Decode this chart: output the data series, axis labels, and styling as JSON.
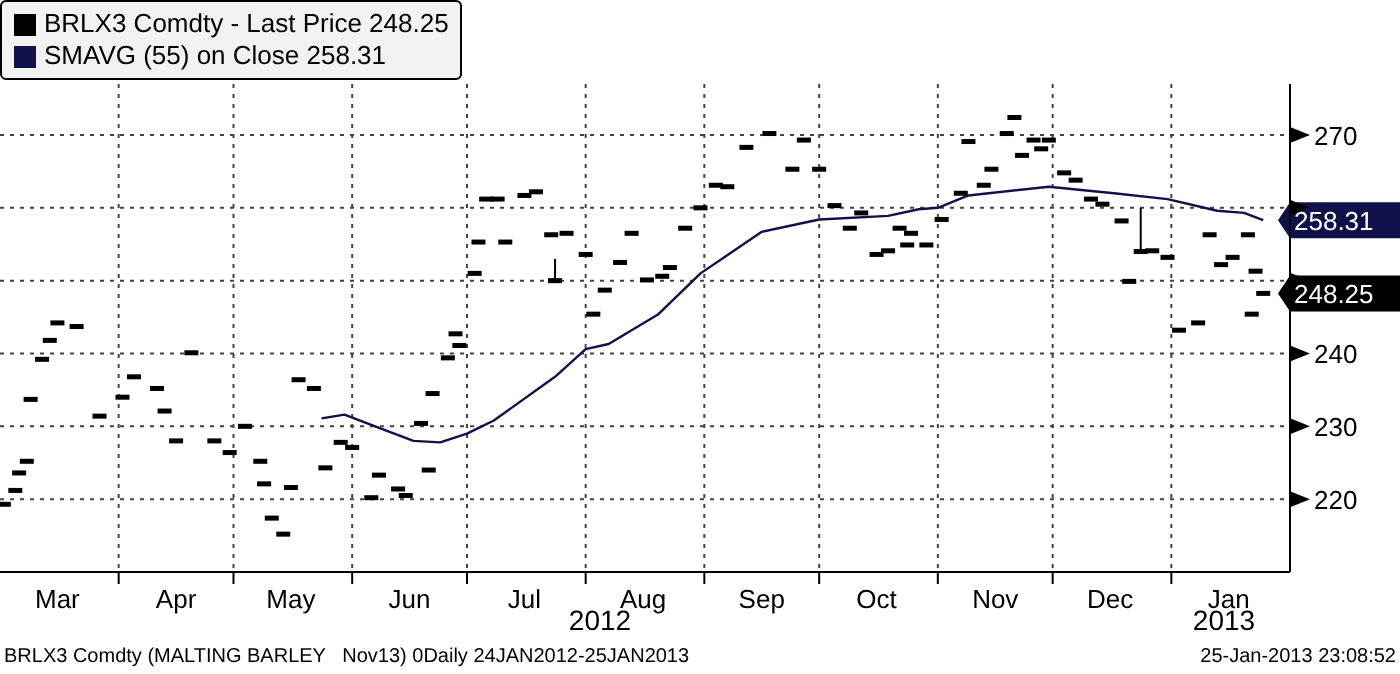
{
  "chart_data": {
    "type": "scatter",
    "legend": "top left",
    "grid": true,
    "xlim": [
      "2012-03-01",
      "2013-02-01"
    ],
    "xticks": [
      {
        "value": "2012-03-16",
        "label": "Mar"
      },
      {
        "value": "2012-04-01",
        "label": null
      },
      {
        "value": "2012-04-16",
        "label": "Apr"
      },
      {
        "value": "2012-05-01",
        "label": null
      },
      {
        "value": "2012-05-16",
        "label": "May"
      },
      {
        "value": "2012-06-01",
        "label": null
      },
      {
        "value": "2012-06-16",
        "label": "Jun"
      },
      {
        "value": "2012-07-01",
        "label": null
      },
      {
        "value": "2012-07-16",
        "label": "Jul"
      },
      {
        "value": "2012-08-01",
        "label": null
      },
      {
        "value": "2012-08-16",
        "label": "Aug"
      },
      {
        "value": "2012-09-01",
        "label": null
      },
      {
        "value": "2012-09-16",
        "label": "Sep"
      },
      {
        "value": "2012-10-01",
        "label": null
      },
      {
        "value": "2012-10-16",
        "label": "Oct"
      },
      {
        "value": "2012-11-01",
        "label": null
      },
      {
        "value": "2012-11-16",
        "label": "Nov"
      },
      {
        "value": "2012-12-01",
        "label": null
      },
      {
        "value": "2012-12-16",
        "label": "Dec"
      },
      {
        "value": "2013-01-01",
        "label": null
      },
      {
        "value": "2013-01-16",
        "label": "Jan"
      }
    ],
    "ylim": [
      210,
      277
    ],
    "yticks": [
      220,
      230,
      240,
      {
        "value": 250,
        "label": null
      },
      {
        "value": 260,
        "label": null
      },
      270
    ],
    "series": [
      {
        "name": "BRLX3 Comdty - Last Price 248.25",
        "color": "#000000",
        "x": [
          "2012-03-02",
          "2012-03-05",
          "2012-03-06",
          "2012-03-08",
          "2012-03-09",
          "2012-03-12",
          "2012-03-14",
          "2012-03-16",
          "2012-03-21",
          "2012-03-27",
          "2012-04-02",
          "2012-04-05",
          "2012-04-11",
          "2012-04-13",
          "2012-04-16",
          "2012-04-20",
          "2012-04-26",
          "2012-04-30",
          "2012-05-04",
          "2012-05-08",
          "2012-05-09",
          "2012-05-11",
          "2012-05-14",
          "2012-05-16",
          "2012-05-18",
          "2012-05-22",
          "2012-05-25",
          "2012-05-29",
          "2012-06-01",
          "2012-06-06",
          "2012-06-08",
          "2012-06-13",
          "2012-06-15",
          "2012-06-19",
          "2012-06-21",
          "2012-06-22",
          "2012-06-26",
          "2012-06-28",
          "2012-06-29",
          "2012-07-03",
          "2012-07-04",
          "2012-07-06",
          "2012-07-09",
          "2012-07-11",
          "2012-07-16",
          "2012-07-19",
          "2012-07-23",
          "2012-07-24",
          "2012-07-27",
          "2012-08-01",
          "2012-08-03",
          "2012-08-06",
          "2012-08-10",
          "2012-08-13",
          "2012-08-17",
          "2012-08-21",
          "2012-08-23",
          "2012-08-27",
          "2012-08-31",
          "2012-09-04",
          "2012-09-07",
          "2012-09-12",
          "2012-09-18",
          "2012-09-24",
          "2012-09-27",
          "2012-10-01",
          "2012-10-05",
          "2012-10-09",
          "2012-10-12",
          "2012-10-16",
          "2012-10-19",
          "2012-10-22",
          "2012-10-24",
          "2012-10-25",
          "2012-10-29",
          "2012-11-02",
          "2012-11-07",
          "2012-11-09",
          "2012-11-13",
          "2012-11-15",
          "2012-11-19",
          "2012-11-21",
          "2012-11-23",
          "2012-11-26",
          "2012-11-28",
          "2012-11-30",
          "2012-12-04",
          "2012-12-07",
          "2012-12-11",
          "2012-12-14",
          "2012-12-19",
          "2012-12-21",
          "2012-12-24",
          "2012-12-27",
          "2012-12-31",
          "2013-01-03",
          "2013-01-08",
          "2013-01-11",
          "2013-01-14",
          "2013-01-17",
          "2013-01-21",
          "2013-01-22",
          "2013-01-23",
          "2013-01-25"
        ],
        "values": [
          219.3,
          221.2,
          223.6,
          225.2,
          233.7,
          239.2,
          241.8,
          244.2,
          243.7,
          231.4,
          234,
          236.8,
          235.2,
          232.1,
          228,
          240.1,
          228,
          226.4,
          230,
          225.2,
          222.1,
          217.4,
          215.2,
          221.6,
          236.4,
          235.2,
          224.3,
          227.8,
          227.1,
          220.2,
          223.3,
          221.4,
          220.5,
          230.4,
          224,
          234.5,
          239.4,
          242.7,
          241.1,
          251,
          255.3,
          261.2,
          261.2,
          255.3,
          261.7,
          262.2,
          256.3,
          250,
          256.5,
          253.6,
          245.4,
          248.7,
          252.5,
          256.5,
          250.1,
          250.6,
          251.8,
          257.2,
          260,
          263.1,
          262.9,
          268.3,
          270.2,
          265.3,
          269.3,
          265.3,
          260.3,
          257.2,
          259.3,
          253.6,
          254.1,
          257.2,
          254.9,
          256.5,
          254.9,
          258.4,
          262,
          269.1,
          263.1,
          265.3,
          270.2,
          272.4,
          267.2,
          269.3,
          268.1,
          269.3,
          264.8,
          263.8,
          261.2,
          260.5,
          258.2,
          249.9,
          254,
          254.1,
          253.2,
          243.2,
          244.2,
          256.3,
          252.2,
          253.2,
          256.3,
          245.4,
          251.3,
          248.25
        ],
        "errors": [
          null,
          null,
          null,
          null,
          null,
          null,
          null,
          null,
          null,
          null,
          null,
          null,
          null,
          null,
          null,
          null,
          null,
          null,
          null,
          null,
          null,
          null,
          null,
          null,
          null,
          null,
          null,
          null,
          null,
          null,
          null,
          null,
          null,
          null,
          null,
          null,
          null,
          null,
          null,
          null,
          null,
          null,
          null,
          null,
          null,
          null,
          null,
          [
            250,
            253
          ],
          null,
          null,
          null,
          null,
          null,
          null,
          null,
          null,
          null,
          null,
          null,
          null,
          null,
          null,
          null,
          null,
          null,
          null,
          null,
          null,
          null,
          null,
          null,
          null,
          null,
          null,
          null,
          null,
          null,
          null,
          null,
          null,
          null,
          null,
          null,
          null,
          null,
          null,
          null,
          null,
          null,
          null,
          null,
          null,
          [
            254,
            260
          ],
          null,
          null,
          null,
          null,
          null,
          null,
          null,
          null,
          null,
          null,
          null
        ],
        "value_labels": [
          null,
          null,
          null,
          null,
          null,
          null,
          null,
          null,
          null,
          null,
          null,
          null,
          null,
          null,
          null,
          null,
          null,
          null,
          null,
          null,
          null,
          null,
          null,
          null,
          null,
          null,
          null,
          null,
          null,
          null,
          null,
          null,
          null,
          null,
          null,
          null,
          null,
          null,
          null,
          null,
          null,
          null,
          null,
          null,
          null,
          null,
          null,
          null,
          null,
          null,
          null,
          null,
          null,
          null,
          null,
          null,
          null,
          null,
          null,
          null,
          null,
          null,
          null,
          null,
          null,
          null,
          null,
          null,
          null,
          null,
          null,
          null,
          null,
          null,
          null,
          null,
          null,
          null,
          null,
          null,
          null,
          null,
          null,
          null,
          null,
          null,
          null,
          null,
          null,
          null,
          null,
          null,
          null,
          null,
          null,
          null,
          null,
          null,
          null,
          null,
          null,
          null,
          null,
          "248.25"
        ]
      },
      {
        "name": "SMAVG (55) on Close 258.31",
        "type": "line",
        "color": "#10104a",
        "x": [
          "2012-05-24",
          "2012-05-30",
          "2012-06-07",
          "2012-06-17",
          "2012-06-24",
          "2012-07-01",
          "2012-07-08",
          "2012-07-24",
          "2012-08-01",
          "2012-08-07",
          "2012-08-20",
          "2012-08-31",
          "2012-09-16",
          "2012-10-01",
          "2012-10-19",
          "2012-10-27",
          "2012-11-01",
          "2012-11-09",
          "2012-11-30",
          "2012-12-17",
          "2012-12-31",
          "2013-01-13",
          "2013-01-20",
          "2013-01-25"
        ],
        "values": [
          231.1,
          231.6,
          230,
          228,
          227.8,
          229,
          230.8,
          236.8,
          240.6,
          241.3,
          245.4,
          251,
          256.7,
          258.4,
          258.9,
          259.8,
          260,
          261.7,
          262.9,
          262,
          261.2,
          259.6,
          259.3,
          258.31
        ],
        "value_labels": [
          null,
          null,
          null,
          null,
          null,
          null,
          null,
          null,
          null,
          null,
          null,
          null,
          null,
          null,
          null,
          null,
          null,
          null,
          null,
          null,
          null,
          null,
          null,
          "258.31"
        ]
      }
    ],
    "annotations": [
      "2012",
      "2013",
      "BRLX3 Comdty (MALTING BARLEY   Nov13) 0Daily 24JAN2012-25JAN2013",
      "25-Jan-2013 23:08:52"
    ]
  }
}
